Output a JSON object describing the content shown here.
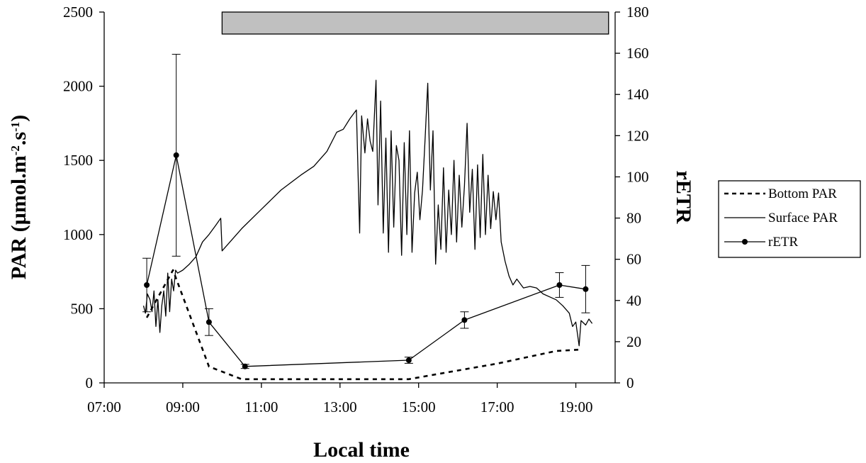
{
  "chart_data": {
    "type": "line",
    "xlabel": "Local time",
    "ylabel_left": {
      "main": "PAR (µmol.m",
      "sup1": "-2",
      "mid": ".s",
      "sup2": "-1",
      "end": ")"
    },
    "ylabel_right": "rETR",
    "x_ticks": [
      "07:00",
      "09:00",
      "11:00",
      "13:00",
      "15:00",
      "17:00",
      "19:00"
    ],
    "x_range": [
      "07:00",
      "20:00"
    ],
    "y_left_range": [
      0,
      2500
    ],
    "y_left_ticks": [
      "0",
      "500",
      "1000",
      "1500",
      "2000",
      "2500"
    ],
    "y_right_range": [
      0,
      180
    ],
    "y_right_ticks": [
      "0",
      "20",
      "40",
      "60",
      "80",
      "100",
      "120",
      "140",
      "160",
      "180"
    ],
    "grid": false,
    "legend_position": "right",
    "shaded_bar": {
      "start": "10:00",
      "end": "19:50",
      "color": "#c0c0c0"
    },
    "series": [
      {
        "name": "Bottom PAR",
        "axis": "left",
        "style": "dashed",
        "points": [
          [
            "08:05",
            440
          ],
          [
            "08:45",
            760
          ],
          [
            "09:40",
            110
          ],
          [
            "10:30",
            25
          ],
          [
            "12:00",
            25
          ],
          [
            "14:45",
            25
          ],
          [
            "15:30",
            60
          ],
          [
            "17:00",
            130
          ],
          [
            "18:30",
            215
          ],
          [
            "19:10",
            225
          ]
        ]
      },
      {
        "name": "Surface PAR",
        "axis": "left",
        "style": "solid",
        "points": [
          [
            "08:00",
            520
          ],
          [
            "08:03",
            470
          ],
          [
            "08:06",
            600
          ],
          [
            "08:10",
            560
          ],
          [
            "08:13",
            480
          ],
          [
            "08:16",
            620
          ],
          [
            "08:19",
            380
          ],
          [
            "08:22",
            560
          ],
          [
            "08:25",
            340
          ],
          [
            "08:28",
            520
          ],
          [
            "08:31",
            620
          ],
          [
            "08:34",
            450
          ],
          [
            "08:37",
            740
          ],
          [
            "08:40",
            480
          ],
          [
            "08:43",
            700
          ],
          [
            "08:46",
            620
          ],
          [
            "08:49",
            760
          ],
          [
            "08:52",
            740
          ],
          [
            "09:00",
            760
          ],
          [
            "09:10",
            800
          ],
          [
            "09:20",
            850
          ],
          [
            "09:30",
            950
          ],
          [
            "09:40",
            1000
          ],
          [
            "09:50",
            1060
          ],
          [
            "09:58",
            1110
          ],
          [
            "10:00",
            890
          ],
          [
            "10:30",
            1040
          ],
          [
            "11:00",
            1170
          ],
          [
            "11:30",
            1300
          ],
          [
            "12:00",
            1400
          ],
          [
            "12:20",
            1460
          ],
          [
            "12:40",
            1560
          ],
          [
            "12:55",
            1690
          ],
          [
            "13:05",
            1710
          ],
          [
            "13:15",
            1780
          ],
          [
            "13:25",
            1840
          ],
          [
            "13:30",
            1010
          ],
          [
            "13:33",
            1800
          ],
          [
            "13:38",
            1550
          ],
          [
            "13:42",
            1780
          ],
          [
            "13:46",
            1630
          ],
          [
            "13:50",
            1560
          ],
          [
            "13:55",
            2040
          ],
          [
            "13:58",
            1200
          ],
          [
            "14:02",
            1900
          ],
          [
            "14:06",
            1010
          ],
          [
            "14:10",
            1650
          ],
          [
            "14:14",
            880
          ],
          [
            "14:18",
            1700
          ],
          [
            "14:22",
            1050
          ],
          [
            "14:26",
            1600
          ],
          [
            "14:30",
            1500
          ],
          [
            "14:34",
            860
          ],
          [
            "14:38",
            1620
          ],
          [
            "14:42",
            1000
          ],
          [
            "14:46",
            1700
          ],
          [
            "14:50",
            880
          ],
          [
            "14:54",
            1280
          ],
          [
            "14:58",
            1420
          ],
          [
            "15:02",
            1100
          ],
          [
            "15:06",
            1300
          ],
          [
            "15:10",
            1650
          ],
          [
            "15:14",
            2020
          ],
          [
            "15:18",
            1300
          ],
          [
            "15:22",
            1700
          ],
          [
            "15:26",
            800
          ],
          [
            "15:30",
            1200
          ],
          [
            "15:34",
            900
          ],
          [
            "15:38",
            1450
          ],
          [
            "15:42",
            880
          ],
          [
            "15:46",
            1300
          ],
          [
            "15:50",
            1000
          ],
          [
            "15:54",
            1500
          ],
          [
            "15:58",
            950
          ],
          [
            "16:02",
            1400
          ],
          [
            "16:06",
            1050
          ],
          [
            "16:10",
            1330
          ],
          [
            "16:14",
            1750
          ],
          [
            "16:18",
            1150
          ],
          [
            "16:22",
            1440
          ],
          [
            "16:26",
            900
          ],
          [
            "16:30",
            1470
          ],
          [
            "16:34",
            980
          ],
          [
            "16:38",
            1540
          ],
          [
            "16:42",
            1000
          ],
          [
            "16:46",
            1400
          ],
          [
            "16:50",
            1040
          ],
          [
            "16:54",
            1290
          ],
          [
            "16:58",
            1100
          ],
          [
            "17:02",
            1280
          ],
          [
            "17:06",
            950
          ],
          [
            "17:12",
            820
          ],
          [
            "17:18",
            720
          ],
          [
            "17:24",
            660
          ],
          [
            "17:30",
            700
          ],
          [
            "17:40",
            640
          ],
          [
            "17:50",
            650
          ],
          [
            "18:00",
            640
          ],
          [
            "18:10",
            600
          ],
          [
            "18:20",
            580
          ],
          [
            "18:30",
            560
          ],
          [
            "18:40",
            520
          ],
          [
            "18:50",
            470
          ],
          [
            "18:55",
            380
          ],
          [
            "19:00",
            410
          ],
          [
            "19:05",
            250
          ],
          [
            "19:08",
            420
          ],
          [
            "19:15",
            390
          ],
          [
            "19:20",
            430
          ],
          [
            "19:25",
            400
          ]
        ]
      },
      {
        "name": "rETR",
        "axis": "right",
        "style": "solid-markers",
        "points": [
          [
            "08:05",
            47.5
          ],
          [
            "08:50",
            110.5
          ],
          [
            "09:40",
            29.5
          ],
          [
            "10:35",
            8
          ],
          [
            "14:45",
            11
          ],
          [
            "16:10",
            30.5
          ],
          [
            "18:35",
            47.5
          ],
          [
            "19:15",
            45.5
          ]
        ],
        "error_bars": [
          13,
          49,
          6.5,
          1,
          1.5,
          4,
          6,
          11.5
        ]
      }
    ]
  }
}
